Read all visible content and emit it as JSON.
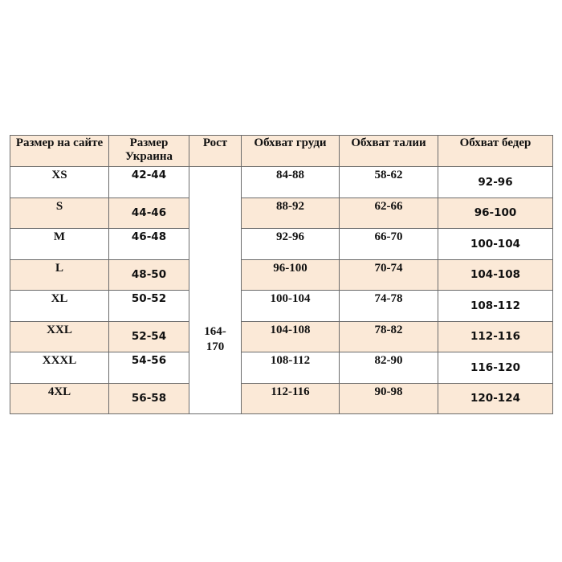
{
  "headers": [
    "Размер на сайте",
    "Размер Украина",
    "Рост",
    "Обхват груди",
    "Обхват талии",
    "Обхват бедер"
  ],
  "height_value": "164-170",
  "rows": [
    {
      "site": "XS",
      "ukraine": "42-44",
      "chest": "84-88",
      "waist": "58-62",
      "hips": "92-96"
    },
    {
      "site": "S",
      "ukraine": "44-46",
      "chest": "88-92",
      "waist": "62-66",
      "hips": "96-100"
    },
    {
      "site": "M",
      "ukraine": "46-48",
      "chest": "92-96",
      "waist": "66-70",
      "hips": "100-104"
    },
    {
      "site": "L",
      "ukraine": "48-50",
      "chest": "96-100",
      "waist": "70-74",
      "hips": "104-108"
    },
    {
      "site": "XL",
      "ukraine": "50-52",
      "chest": "100-104",
      "waist": "74-78",
      "hips": "108-112"
    },
    {
      "site": "XXL",
      "ukraine": "52-54",
      "chest": "104-108",
      "waist": "78-82",
      "hips": "112-116"
    },
    {
      "site": "XXXL",
      "ukraine": "54-56",
      "chest": "108-112",
      "waist": "82-90",
      "hips": "116-120"
    },
    {
      "site": "4XL",
      "ukraine": "56-58",
      "chest": "112-116",
      "waist": "90-98",
      "hips": "120-124"
    }
  ],
  "colors": {
    "header_bg": "#fbe9d7",
    "alt_row_bg": "#fbe9d7",
    "border": "#6b6b6b"
  }
}
